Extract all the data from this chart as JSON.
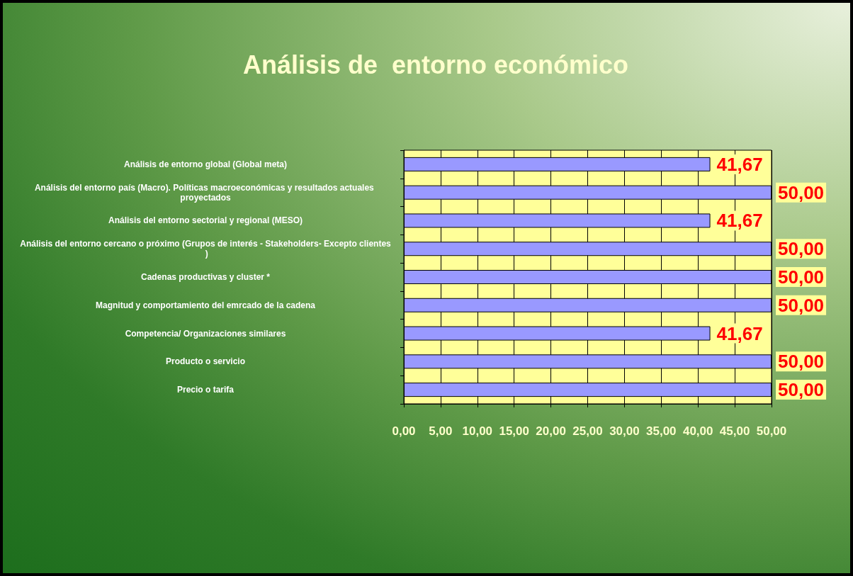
{
  "chart_data": {
    "type": "bar",
    "orientation": "horizontal",
    "title": "Análisis de  entorno económico",
    "categories": [
      "Análisis de entorno global (Global meta)",
      "Análisis del entorno país (Macro). Políticas macroeconómicas y resultados actuales proyectados",
      "Análisis del entorno sectorial y regional (MESO)",
      "Análisis del entorno cercano o próximo (Grupos de interés - Stakeholders- Excepto clientes )",
      "Cadenas productivas y cluster *",
      "Magnitud y comportamiento del emrcado de la cadena",
      "Competencia/ Organizaciones similares",
      "Producto o servicio",
      "Precio o tarifa"
    ],
    "values": [
      41.67,
      50,
      41.67,
      50,
      50,
      50,
      41.67,
      50,
      50
    ],
    "value_labels": [
      "41,67",
      "50,00",
      "41,67",
      "50,00",
      "50,00",
      "50,00",
      "41,67",
      "50,00",
      "50,00"
    ],
    "color": "#9999ff",
    "xlim": [
      0,
      50
    ],
    "xticks": [
      {
        "value": 0,
        "label": "0,00"
      },
      {
        "value": 5,
        "label": "5,00"
      },
      {
        "value": 10,
        "label": "10,00"
      },
      {
        "value": 15,
        "label": "15,00"
      },
      {
        "value": 20,
        "label": "20,00"
      },
      {
        "value": 25,
        "label": "25,00"
      },
      {
        "value": 30,
        "label": "30,00"
      },
      {
        "value": 35,
        "label": "35,00"
      },
      {
        "value": 40,
        "label": "40,00"
      },
      {
        "value": 45,
        "label": "45,00"
      },
      {
        "value": 50,
        "label": "50,00"
      }
    ],
    "grid": "x"
  }
}
